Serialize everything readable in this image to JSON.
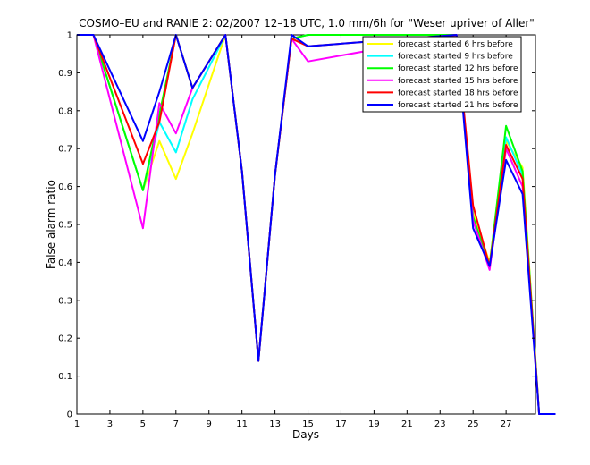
{
  "chart_data": {
    "type": "line",
    "title": "COSMO–EU and RANIE 2: 02/2007 12–18 UTC, 1.0 mm/6h for \"Weser upriver of Aller\"",
    "xlabel": "Days",
    "ylabel": "False alarm ratio",
    "xlim": [
      1,
      29
    ],
    "ylim": [
      0,
      1
    ],
    "xticks": [
      1,
      3,
      5,
      7,
      9,
      11,
      13,
      15,
      17,
      19,
      21,
      23,
      25,
      27
    ],
    "yticks": [
      0,
      0.1,
      0.2,
      0.3,
      0.4,
      0.5,
      0.6,
      0.7,
      0.8,
      0.9,
      1
    ],
    "ytick_labels": [
      "0",
      "0.1",
      "0.2",
      "0.3",
      "0.4",
      "0.5",
      "0.6",
      "0.7",
      "0.8",
      "0.9",
      "1"
    ],
    "grid": false,
    "legend_position": "top-right",
    "series": [
      {
        "name": "forecast started 6 hrs before",
        "color": "#ffff00",
        "points": [
          [
            1,
            1
          ],
          [
            2,
            1
          ],
          [
            5,
            0.59
          ],
          [
            6,
            0.72
          ],
          [
            7,
            0.62
          ],
          [
            8,
            0.74
          ],
          [
            10,
            1
          ],
          [
            11,
            0.64
          ],
          [
            12,
            0.14
          ],
          [
            13,
            0.63
          ],
          [
            14,
            0.99
          ],
          [
            15,
            1
          ],
          [
            24,
            1
          ],
          [
            25,
            0.53
          ],
          [
            26,
            0.4
          ],
          [
            27,
            0.72
          ],
          [
            28,
            0.65
          ],
          [
            29,
            0
          ],
          [
            30,
            0
          ]
        ]
      },
      {
        "name": "forecast started 9 hrs before",
        "color": "#00ffff",
        "points": [
          [
            1,
            1
          ],
          [
            2,
            1
          ],
          [
            5,
            0.59
          ],
          [
            6,
            0.77
          ],
          [
            7,
            0.69
          ],
          [
            8,
            0.83
          ],
          [
            10,
            1
          ],
          [
            11,
            0.64
          ],
          [
            12,
            0.14
          ],
          [
            13,
            0.63
          ],
          [
            14,
            0.99
          ],
          [
            15,
            1
          ],
          [
            24,
            1
          ],
          [
            25,
            0.52
          ],
          [
            26,
            0.39
          ],
          [
            27,
            0.73
          ],
          [
            28,
            0.63
          ],
          [
            29,
            0
          ],
          [
            30,
            0
          ]
        ]
      },
      {
        "name": "forecast started 12 hrs before",
        "color": "#00ff00",
        "points": [
          [
            1,
            1
          ],
          [
            2,
            1
          ],
          [
            5,
            0.59
          ],
          [
            6,
            0.79
          ],
          [
            7,
            1
          ],
          [
            8,
            0.86
          ],
          [
            10,
            1
          ],
          [
            11,
            0.64
          ],
          [
            12,
            0.14
          ],
          [
            13,
            0.63
          ],
          [
            14,
            0.99
          ],
          [
            15,
            1
          ],
          [
            24,
            1
          ],
          [
            25,
            0.52
          ],
          [
            26,
            0.39
          ],
          [
            27,
            0.76
          ],
          [
            28,
            0.64
          ],
          [
            29,
            0
          ],
          [
            30,
            0
          ]
        ]
      },
      {
        "name": "forecast started 15 hrs before",
        "color": "#ff00ff",
        "points": [
          [
            1,
            1
          ],
          [
            2,
            1
          ],
          [
            5,
            0.49
          ],
          [
            6,
            0.82
          ],
          [
            7,
            0.74
          ],
          [
            8,
            0.86
          ],
          [
            10,
            1
          ],
          [
            11,
            0.64
          ],
          [
            12,
            0.14
          ],
          [
            13,
            0.63
          ],
          [
            14,
            0.99
          ],
          [
            15,
            0.93
          ],
          [
            24,
            1
          ],
          [
            25,
            0.51
          ],
          [
            26,
            0.38
          ],
          [
            27,
            0.7
          ],
          [
            28,
            0.6
          ],
          [
            29,
            0
          ],
          [
            30,
            0
          ]
        ]
      },
      {
        "name": "forecast started 18 hrs before",
        "color": "#ff0000",
        "points": [
          [
            1,
            1
          ],
          [
            2,
            1
          ],
          [
            5,
            0.66
          ],
          [
            6,
            0.77
          ],
          [
            7,
            1
          ],
          [
            8,
            0.86
          ],
          [
            10,
            1
          ],
          [
            11,
            0.64
          ],
          [
            12,
            0.14
          ],
          [
            13,
            0.63
          ],
          [
            14,
            0.99
          ],
          [
            15,
            0.97
          ],
          [
            24,
            1
          ],
          [
            25,
            0.55
          ],
          [
            26,
            0.39
          ],
          [
            27,
            0.71
          ],
          [
            28,
            0.62
          ],
          [
            29,
            0
          ],
          [
            30,
            0
          ]
        ]
      },
      {
        "name": "forecast started 21 hrs before",
        "color": "#0000ff",
        "points": [
          [
            1,
            1
          ],
          [
            2,
            1
          ],
          [
            5,
            0.72
          ],
          [
            6,
            0.85
          ],
          [
            7,
            1
          ],
          [
            8,
            0.86
          ],
          [
            10,
            1
          ],
          [
            11,
            0.64
          ],
          [
            12,
            0.14
          ],
          [
            13,
            0.63
          ],
          [
            14,
            1
          ],
          [
            15,
            0.97
          ],
          [
            24,
            1
          ],
          [
            25,
            0.49
          ],
          [
            26,
            0.39
          ],
          [
            27,
            0.67
          ],
          [
            28,
            0.58
          ],
          [
            29,
            0
          ],
          [
            30,
            0
          ]
        ]
      }
    ]
  }
}
